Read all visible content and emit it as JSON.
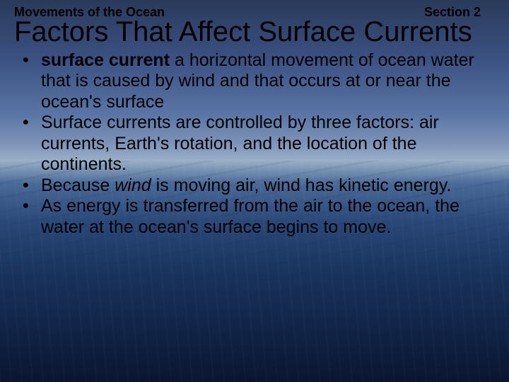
{
  "header": {
    "chapter": "Movements of the Ocean",
    "section": "Section 2"
  },
  "title": "Factors That Affect Surface Currents",
  "bullets": [
    {
      "term": "surface current",
      "rest": " a horizontal movement of ocean water that is caused by wind and that occurs at or near the ocean's surface"
    },
    {
      "text": "Surface currents are controlled by three factors: air currents, Earth's rotation, and the location of the continents."
    },
    {
      "pre": "Because ",
      "ital": "wind",
      "post": " is moving air, wind has kinetic energy."
    },
    {
      "text": "As energy is transferred from the air to the ocean,  the water at the ocean's surface begins to move."
    }
  ],
  "style": {
    "bg_gradient_top": "#2a3a5a",
    "bg_gradient_mid": "#9ab0c8",
    "bg_gradient_bottom": "#0a1530",
    "text_color": "#000000",
    "title_fontsize": 40,
    "header_fontsize": 18,
    "bullet_fontsize": 25,
    "font_family": "Arial"
  }
}
